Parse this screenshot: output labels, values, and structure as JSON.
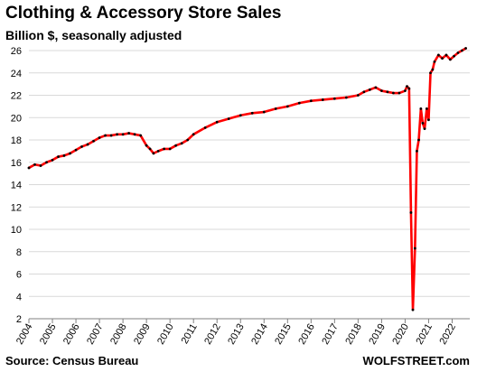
{
  "chart_data": {
    "type": "line",
    "title": "Clothing & Accessory Store Sales",
    "subtitle": "Billion $, seasonally adjusted",
    "xlabel": "",
    "ylabel": "",
    "ylim": [
      2,
      26
    ],
    "yticks": [
      2,
      4,
      6,
      8,
      10,
      12,
      14,
      16,
      18,
      20,
      22,
      24,
      26
    ],
    "xlim": [
      2004,
      2022.75
    ],
    "xticks": [
      2004,
      2005,
      2006,
      2007,
      2008,
      2009,
      2010,
      2011,
      2012,
      2013,
      2014,
      2015,
      2016,
      2017,
      2018,
      2019,
      2020,
      2021,
      2022
    ],
    "grid": "horizontal",
    "legend": "none",
    "line_color": "#ff0000",
    "marker_color": "#000000",
    "grid_color": "#d9d9d9",
    "series": [
      {
        "x": [
          2004.0,
          2004.25,
          2004.5,
          2004.75,
          2005.0,
          2005.25,
          2005.5,
          2005.75,
          2006.0,
          2006.25,
          2006.5,
          2006.75,
          2007.0,
          2007.25,
          2007.5,
          2007.75,
          2008.0,
          2008.25,
          2008.5,
          2008.75,
          2009.0,
          2009.15,
          2009.3,
          2009.5,
          2009.75,
          2010.0,
          2010.25,
          2010.5,
          2010.75,
          2011.0,
          2011.5,
          2012.0,
          2012.5,
          2013.0,
          2013.5,
          2014.0,
          2014.5,
          2015.0,
          2015.5,
          2016.0,
          2016.5,
          2017.0,
          2017.5,
          2018.0,
          2018.25,
          2018.5,
          2018.75,
          2019.0,
          2019.25,
          2019.5,
          2019.75,
          2020.0,
          2020.08,
          2020.17,
          2020.25,
          2020.33,
          2020.42,
          2020.5,
          2020.58,
          2020.67,
          2020.75,
          2020.83,
          2020.92,
          2021.0,
          2021.08,
          2021.17,
          2021.25,
          2021.42,
          2021.58,
          2021.75,
          2021.92,
          2022.08,
          2022.25,
          2022.42,
          2022.58
        ],
        "values": [
          15.5,
          15.8,
          15.7,
          16.0,
          16.2,
          16.5,
          16.6,
          16.8,
          17.1,
          17.4,
          17.6,
          17.9,
          18.2,
          18.4,
          18.4,
          18.5,
          18.5,
          18.6,
          18.5,
          18.4,
          17.5,
          17.2,
          16.8,
          17.0,
          17.2,
          17.2,
          17.5,
          17.7,
          18.0,
          18.5,
          19.1,
          19.6,
          19.9,
          20.2,
          20.4,
          20.5,
          20.8,
          21.0,
          21.3,
          21.5,
          21.6,
          21.7,
          21.8,
          22.0,
          22.3,
          22.5,
          22.7,
          22.4,
          22.3,
          22.2,
          22.2,
          22.4,
          22.8,
          22.6,
          11.5,
          2.8,
          8.3,
          17.0,
          18.0,
          20.8,
          19.5,
          19.0,
          20.8,
          19.8,
          24.0,
          24.3,
          25.0,
          25.6,
          25.3,
          25.6,
          25.2,
          25.5,
          25.8,
          26.0,
          26.2
        ]
      }
    ],
    "source": "Source: Census Bureau",
    "brand": "WOLFSTREET.com"
  }
}
